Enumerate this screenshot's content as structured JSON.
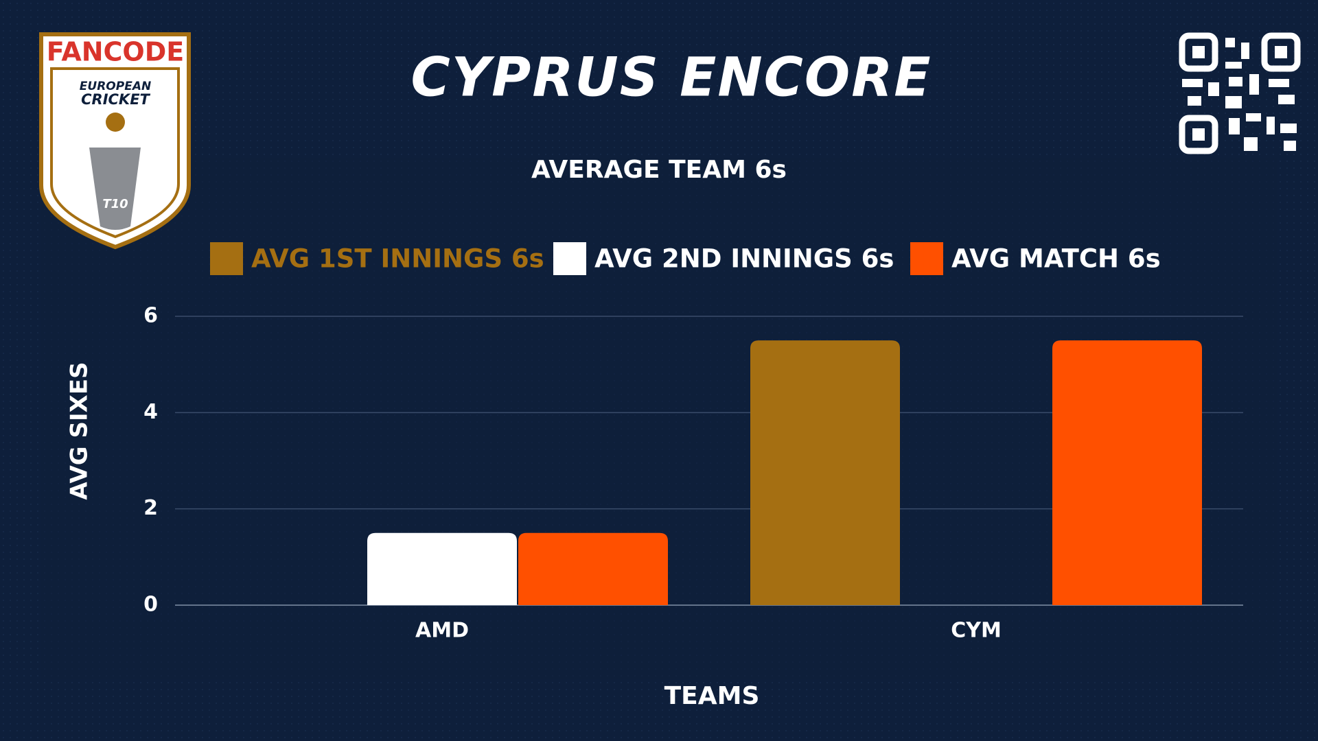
{
  "logo": {
    "brand": "FANCODE",
    "line1": "EUROPEAN",
    "line2": "CRICKET",
    "badge": "T10"
  },
  "chart_data": {
    "type": "bar",
    "title": "CYPRUS ENCORE",
    "subtitle": "AVERAGE TEAM 6s",
    "x_label": "TEAMS",
    "y_label": "AVG SIXES",
    "categories": [
      "AMD",
      "CYM"
    ],
    "series": [
      {
        "name": "AVG 1ST INNINGS 6s",
        "color": "#a56f12",
        "values": [
          0,
          5.5
        ]
      },
      {
        "name": "AVG 2ND INNINGS 6s",
        "color": "#ffffff",
        "values": [
          1.5,
          0
        ]
      },
      {
        "name": "AVG MATCH 6s",
        "color": "#ff5000",
        "values": [
          1.5,
          5.5
        ]
      }
    ],
    "ylim": [
      0,
      6
    ],
    "yticks": [
      0,
      2,
      4,
      6
    ],
    "grid": true,
    "legend": "top"
  }
}
